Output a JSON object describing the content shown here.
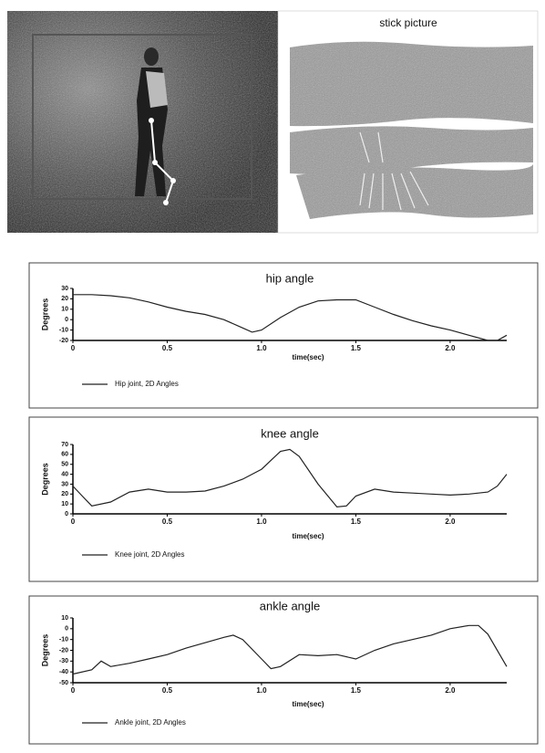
{
  "stick_picture_title": "stick picture",
  "chart_data": [
    {
      "type": "line",
      "title": "hip angle",
      "ylabel": "Degrees",
      "xlabel": "time(sec)",
      "x": [
        0,
        0.1,
        0.2,
        0.3,
        0.4,
        0.5,
        0.6,
        0.7,
        0.8,
        0.9,
        0.95,
        1.0,
        1.1,
        1.2,
        1.3,
        1.4,
        1.5,
        1.6,
        1.7,
        1.8,
        1.9,
        2.0,
        2.1,
        2.2,
        2.25,
        2.3
      ],
      "series": [
        {
          "name": "Hip joint, 2D Angles",
          "color": "#222222",
          "values": [
            24,
            24,
            23,
            21,
            17,
            12,
            8,
            5,
            0,
            -8,
            -12,
            -10,
            2,
            12,
            18,
            19,
            19,
            12,
            5,
            -1,
            -6,
            -10,
            -15,
            -20,
            -20,
            -15
          ]
        }
      ],
      "xlim": [
        0,
        2.3
      ],
      "ylim": [
        -20,
        30
      ],
      "xticks": [
        0,
        0.5,
        {
          "value": 1,
          "label": "1.0"
        },
        1.5,
        {
          "value": 2,
          "label": "2.0"
        }
      ],
      "yticks": [
        -20,
        -10,
        0,
        10,
        20,
        30
      ]
    },
    {
      "type": "line",
      "title": "knee angle",
      "ylabel": "Degrees",
      "xlabel": "time(sec)",
      "x": [
        0,
        0.05,
        0.1,
        0.2,
        0.3,
        0.4,
        0.5,
        0.6,
        0.7,
        0.8,
        0.9,
        1.0,
        1.1,
        1.15,
        1.2,
        1.3,
        1.4,
        1.45,
        1.5,
        1.6,
        1.7,
        1.8,
        1.9,
        2.0,
        2.1,
        2.2,
        2.25,
        2.3
      ],
      "series": [
        {
          "name": "Knee joint, 2D Angles",
          "color": "#222222",
          "values": [
            28,
            18,
            8,
            12,
            22,
            25,
            22,
            22,
            23,
            28,
            35,
            45,
            63,
            65,
            58,
            30,
            7,
            8,
            18,
            25,
            22,
            21,
            20,
            19,
            20,
            22,
            28,
            40
          ]
        }
      ],
      "xlim": [
        0,
        2.3
      ],
      "ylim": [
        0,
        70
      ],
      "xticks": [
        0,
        0.5,
        {
          "value": 1,
          "label": "1.0"
        },
        1.5,
        {
          "value": 2,
          "label": "2.0"
        }
      ],
      "yticks": [
        0,
        10,
        20,
        30,
        40,
        50,
        60,
        70
      ]
    },
    {
      "type": "line",
      "title": "ankle angle",
      "ylabel": "Degrees",
      "xlabel": "time(sec)",
      "x": [
        0,
        0.1,
        0.15,
        0.2,
        0.3,
        0.4,
        0.5,
        0.6,
        0.7,
        0.8,
        0.85,
        0.9,
        1.0,
        1.05,
        1.1,
        1.2,
        1.3,
        1.4,
        1.5,
        1.6,
        1.7,
        1.8,
        1.9,
        2.0,
        2.1,
        2.15,
        2.2,
        2.3
      ],
      "series": [
        {
          "name": "Ankle joint, 2D Angles",
          "color": "#222222",
          "values": [
            -42,
            -38,
            -30,
            -35,
            -32,
            -28,
            -24,
            -18,
            -13,
            -8,
            -6,
            -10,
            -28,
            -37,
            -35,
            -24,
            -25,
            -24,
            -28,
            -20,
            -14,
            -10,
            -6,
            0,
            3,
            3,
            -5,
            -35
          ]
        }
      ],
      "xlim": [
        0,
        2.3
      ],
      "ylim": [
        -50,
        10
      ],
      "xticks": [
        0,
        0.5,
        {
          "value": 1,
          "label": "1.0"
        },
        1.5,
        {
          "value": 2,
          "label": "2.0"
        }
      ],
      "yticks": [
        -50,
        -40,
        -30,
        -20,
        -10,
        0,
        10
      ]
    }
  ]
}
